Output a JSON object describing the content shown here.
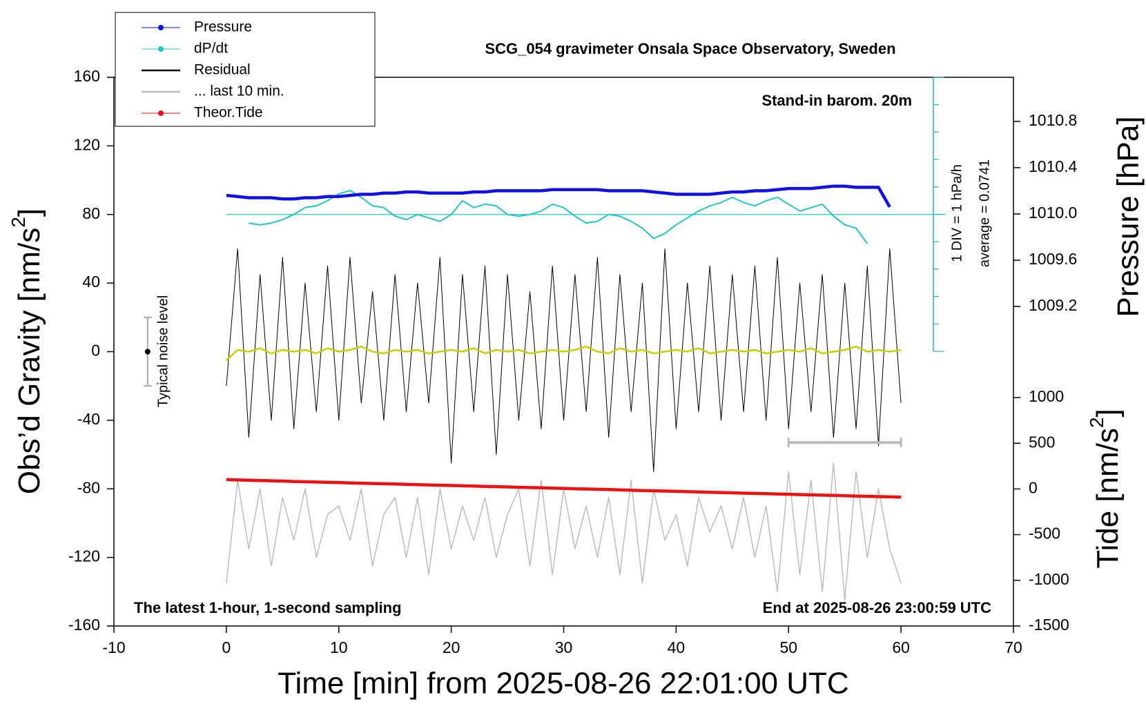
{
  "chart_data": {
    "type": "line",
    "title": "SCG_054 gravimeter Onsala Space Observatory, Sweden",
    "annotations": {
      "barometer": "Stand-in barom. 20m",
      "sampling": "The latest 1-hour, 1-second sampling",
      "end": "End at 2025-08-26 23:00:59 UTC",
      "div_label": "1 DIV = 1 hPa/h",
      "average_label": "average = 0.0741"
    },
    "xlabel": "Time [min] from 2025-08-26 22:01:00 UTC",
    "ylabel": [
      "Obs’d Gravity [nm/s",
      "2",
      "]"
    ],
    "y2label": "Pressure [hPa]",
    "y3label": [
      "Tide [nm/s",
      "2",
      "]"
    ],
    "xlim": [
      -10,
      70
    ],
    "xticks": [
      -10,
      0,
      10,
      20,
      30,
      40,
      50,
      60,
      70
    ],
    "ylim": [
      -160,
      160
    ],
    "yticks": [
      -160,
      -120,
      -80,
      -40,
      0,
      40,
      80,
      120,
      160
    ],
    "y2lim": [
      1006.438,
      1011.181
    ],
    "y2ticks": [
      1009.2,
      1009.6,
      {
        "value": 1010,
        "label": "1010.0"
      },
      1010.4,
      1010.8
    ],
    "y3lim": [
      -1500,
      4505
    ],
    "y3ticks": [
      -1500,
      -1000,
      -500,
      0,
      500,
      1000
    ],
    "legend": "top-left",
    "x": [
      0,
      1,
      2,
      3,
      4,
      5,
      6,
      7,
      8,
      9,
      10,
      11,
      12,
      13,
      14,
      15,
      16,
      17,
      18,
      19,
      20,
      21,
      22,
      23,
      24,
      25,
      26,
      27,
      28,
      29,
      30,
      31,
      32,
      33,
      34,
      35,
      36,
      37,
      38,
      39,
      40,
      41,
      42,
      43,
      44,
      45,
      46,
      47,
      48,
      49,
      50,
      51,
      52,
      53,
      54,
      55,
      56,
      57,
      58,
      59,
      60
    ],
    "series": [
      {
        "name": "Residual",
        "color": "#000000",
        "width": 1,
        "values": [
          -20,
          60,
          -50,
          45,
          -40,
          55,
          -45,
          40,
          -35,
          50,
          -40,
          55,
          -30,
          35,
          -40,
          45,
          -35,
          40,
          -30,
          55,
          -65,
          45,
          -35,
          50,
          -60,
          45,
          -40,
          35,
          -45,
          50,
          -40,
          45,
          -35,
          55,
          -50,
          45,
          -35,
          40,
          -70,
          60,
          -45,
          40,
          -35,
          50,
          -40,
          45,
          -35,
          50,
          -40,
          55,
          -45,
          40,
          -35,
          45,
          -50,
          40,
          -45,
          50,
          -55,
          60,
          -30
        ]
      },
      {
        "color": "#cccc00",
        "width": 2.5,
        "values": [
          -5,
          1,
          0,
          2,
          -1,
          1,
          0,
          1,
          -1,
          2,
          0,
          1,
          3,
          0,
          -1,
          1,
          0,
          1,
          -1,
          0,
          1,
          0,
          2,
          -1,
          1,
          0,
          1,
          -1,
          0,
          1,
          0,
          1,
          3,
          0,
          -1,
          2,
          0,
          1,
          -1,
          0,
          1,
          0,
          2,
          -1,
          0,
          1,
          0,
          1,
          -1,
          0,
          1,
          0,
          2,
          -1,
          0,
          1,
          3,
          0,
          1,
          0,
          1
        ]
      },
      {
        "name": "... last 10 min.",
        "color": "#bbbbbb",
        "width": 1.5,
        "values": [
          -135,
          -75,
          -115,
          -80,
          -125,
          -85,
          -110,
          -80,
          -120,
          -95,
          -90,
          -110,
          -80,
          -125,
          -95,
          -85,
          -120,
          -85,
          -130,
          -80,
          -115,
          -90,
          -110,
          -85,
          -120,
          -95,
          -80,
          -125,
          -75,
          -130,
          -80,
          -115,
          -90,
          -120,
          -85,
          -130,
          -75,
          -135,
          -80,
          -110,
          -95,
          -125,
          -85,
          -105,
          -90,
          -115,
          -85,
          -120,
          -90,
          -140,
          -70,
          -130,
          -75,
          -140,
          -65,
          -145,
          -70,
          -120,
          -80,
          -115,
          -135
        ]
      },
      {
        "name": "dP/dt",
        "color": "#22c4c4",
        "width": 2,
        "marker": true,
        "values": [
          null,
          null,
          75,
          74,
          75,
          77,
          80,
          84,
          85,
          88,
          92,
          94,
          90,
          85,
          84,
          79,
          77,
          80,
          78,
          76,
          80,
          88,
          84,
          86,
          85,
          80,
          79,
          80,
          82,
          86,
          84,
          79,
          75,
          76,
          80,
          79,
          76,
          72,
          66,
          69,
          74,
          78,
          82,
          85,
          87,
          90,
          87,
          85,
          88,
          90,
          86,
          82,
          84,
          86,
          79,
          74,
          72,
          63,
          null,
          null,
          null
        ]
      },
      {
        "name": "Pressure",
        "color": "#1010e8",
        "width": 4.5,
        "marker": true,
        "axis": "y2",
        "values": [
          1010.16,
          1010.15,
          1010.14,
          1010.14,
          1010.14,
          1010.13,
          1010.13,
          1010.14,
          1010.14,
          1010.15,
          1010.15,
          1010.16,
          1010.17,
          1010.17,
          1010.18,
          1010.18,
          1010.19,
          1010.19,
          1010.18,
          1010.18,
          1010.18,
          1010.18,
          1010.19,
          1010.19,
          1010.2,
          1010.2,
          1010.2,
          1010.2,
          1010.2,
          1010.21,
          1010.21,
          1010.21,
          1010.21,
          1010.21,
          1010.2,
          1010.2,
          1010.2,
          1010.2,
          1010.19,
          1010.18,
          1010.17,
          1010.17,
          1010.17,
          1010.17,
          1010.18,
          1010.19,
          1010.19,
          1010.2,
          1010.2,
          1010.21,
          1010.22,
          1010.22,
          1010.22,
          1010.23,
          1010.24,
          1010.24,
          1010.23,
          1010.23,
          1010.23,
          1010.06,
          null
        ]
      },
      {
        "name": "Theor.Tide",
        "color": "#ee1111",
        "width": 4.5,
        "marker": true,
        "axis": "y3",
        "values": [
          102,
          98,
          95,
          92,
          89,
          86,
          82,
          79,
          76,
          73,
          70,
          66,
          63,
          60,
          57,
          54,
          50,
          47,
          44,
          41,
          38,
          34,
          31,
          28,
          25,
          22,
          18,
          15,
          12,
          9,
          6,
          2,
          -1,
          -4,
          -7,
          -10,
          -14,
          -17,
          -20,
          -23,
          -26,
          -30,
          -33,
          -36,
          -39,
          -42,
          -46,
          -49,
          -52,
          -55,
          -58,
          -62,
          -65,
          -68,
          -71,
          -74,
          -78,
          -81,
          -84,
          -87,
          -90
        ]
      }
    ],
    "noise_bar": {
      "label": "Typical noise level",
      "x": -7,
      "value": 0,
      "error": 20
    },
    "window_marker": {
      "xrange": [
        50,
        60
      ],
      "value": -53
    }
  }
}
